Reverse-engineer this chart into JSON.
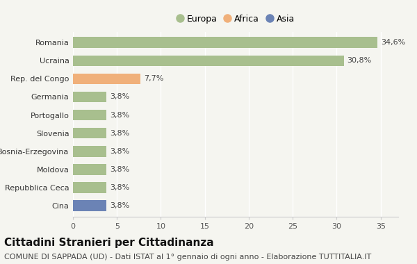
{
  "categories": [
    "Cina",
    "Repubblica Ceca",
    "Moldova",
    "Bosnia-Erzegovina",
    "Slovenia",
    "Portogallo",
    "Germania",
    "Rep. del Congo",
    "Ucraina",
    "Romania"
  ],
  "values": [
    3.8,
    3.8,
    3.8,
    3.8,
    3.8,
    3.8,
    3.8,
    7.7,
    30.8,
    34.6
  ],
  "labels": [
    "3,8%",
    "3,8%",
    "3,8%",
    "3,8%",
    "3,8%",
    "3,8%",
    "3,8%",
    "7,7%",
    "30,8%",
    "34,6%"
  ],
  "colors": [
    "#6b83b5",
    "#a8bf8e",
    "#a8bf8e",
    "#a8bf8e",
    "#a8bf8e",
    "#a8bf8e",
    "#a8bf8e",
    "#f0b07a",
    "#a8bf8e",
    "#a8bf8e"
  ],
  "legend_labels": [
    "Europa",
    "Africa",
    "Asia"
  ],
  "legend_colors": [
    "#a8bf8e",
    "#f0b07a",
    "#6b83b5"
  ],
  "title": "Cittadini Stranieri per Cittadinanza",
  "subtitle": "COMUNE DI SAPPADA (UD) - Dati ISTAT al 1° gennaio di ogni anno - Elaborazione TUTTITALIA.IT",
  "xlim": [
    0,
    37
  ],
  "xticks": [
    0,
    5,
    10,
    15,
    20,
    25,
    30,
    35
  ],
  "background_color": "#f5f5f0",
  "bar_height": 0.6,
  "title_fontsize": 11,
  "subtitle_fontsize": 8,
  "label_fontsize": 8,
  "tick_fontsize": 8,
  "legend_fontsize": 9
}
